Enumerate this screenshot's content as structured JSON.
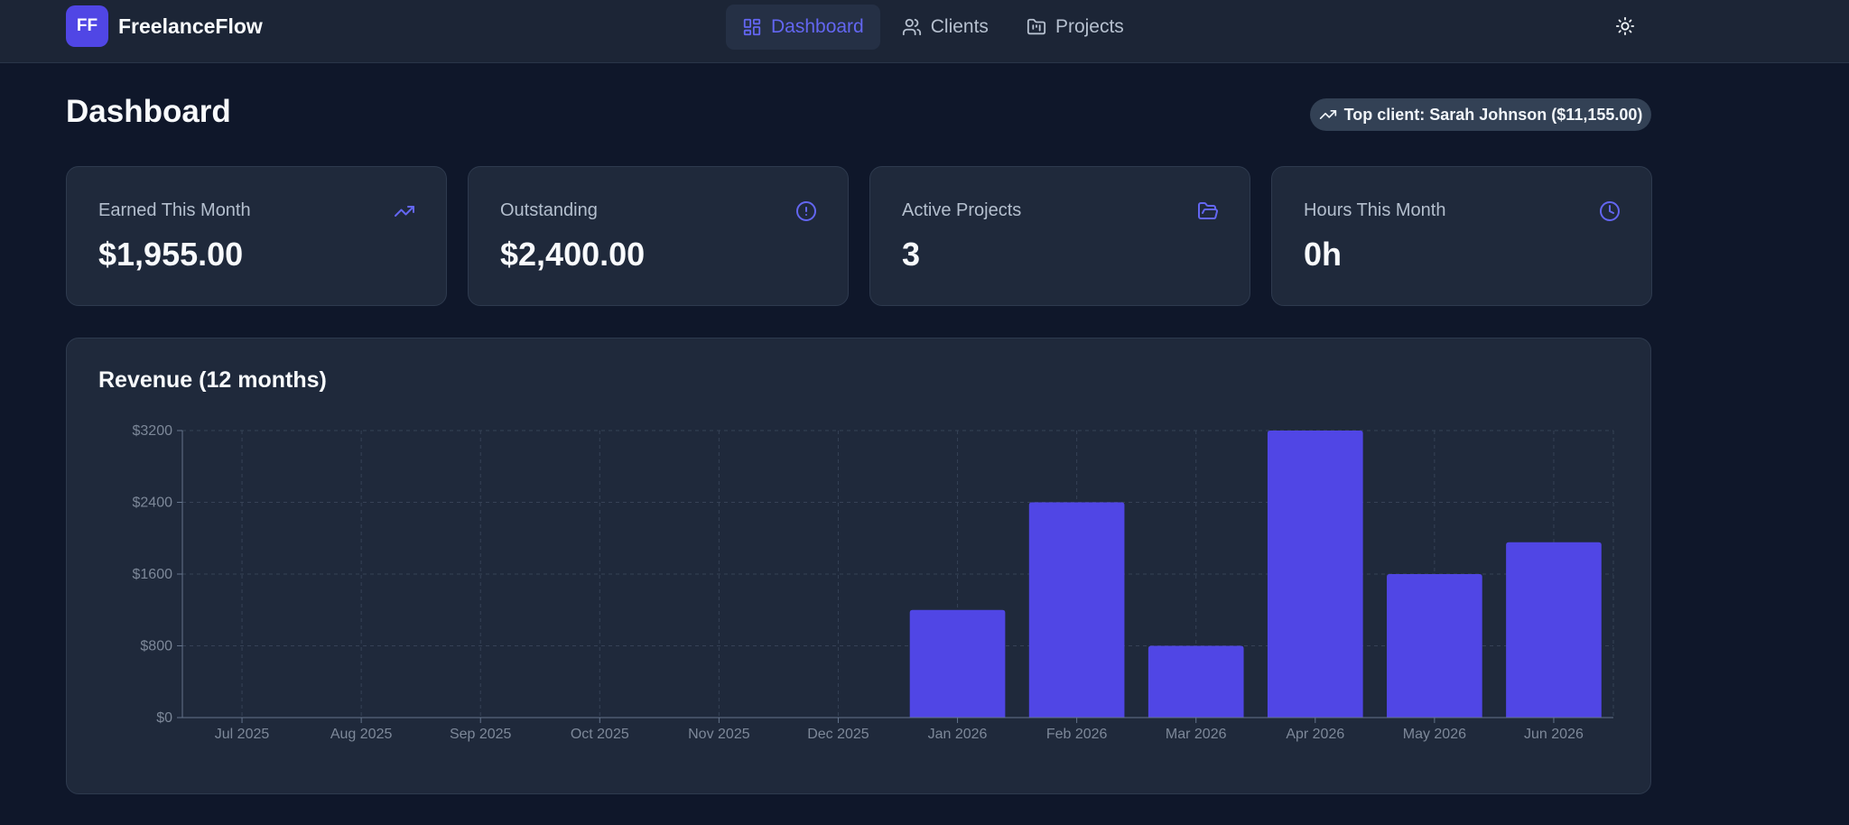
{
  "header": {
    "logo_initials": "FF",
    "brand": "FreelanceFlow",
    "nav": [
      {
        "label": "Dashboard",
        "icon": "dashboard-grid-icon",
        "active": true
      },
      {
        "label": "Clients",
        "icon": "users-icon",
        "active": false
      },
      {
        "label": "Projects",
        "icon": "folder-kanban-icon",
        "active": false
      }
    ],
    "theme_toggle_icon": "sun-icon"
  },
  "page": {
    "title": "Dashboard",
    "top_client": "Top client: Sarah Johnson ($11,155.00)"
  },
  "stats": [
    {
      "label": "Earned This Month",
      "value": "$1,955.00",
      "icon": "trending-up-icon"
    },
    {
      "label": "Outstanding",
      "value": "$2,400.00",
      "icon": "alert-circle-icon"
    },
    {
      "label": "Active Projects",
      "value": "3",
      "icon": "folder-open-icon"
    },
    {
      "label": "Hours This Month",
      "value": "0h",
      "icon": "clock-icon"
    }
  ],
  "colors": {
    "accent": "#5046e5",
    "background": "#0f172a",
    "card": "#1f293b"
  },
  "chart_data": {
    "type": "bar",
    "title": "Revenue (12 months)",
    "categories": [
      "Jul 2025",
      "Aug 2025",
      "Sep 2025",
      "Oct 2025",
      "Nov 2025",
      "Dec 2025",
      "Jan 2026",
      "Feb 2026",
      "Mar 2026",
      "Apr 2026",
      "May 2026",
      "Jun 2026"
    ],
    "values": [
      0,
      0,
      0,
      0,
      0,
      0,
      1200,
      2400,
      800,
      3200,
      1600,
      1955
    ],
    "y_ticks": [
      "$0",
      "$800",
      "$1600",
      "$2400",
      "$3200"
    ],
    "ylim": [
      0,
      3200
    ],
    "grid": true,
    "bar_color": "#5046e5"
  }
}
